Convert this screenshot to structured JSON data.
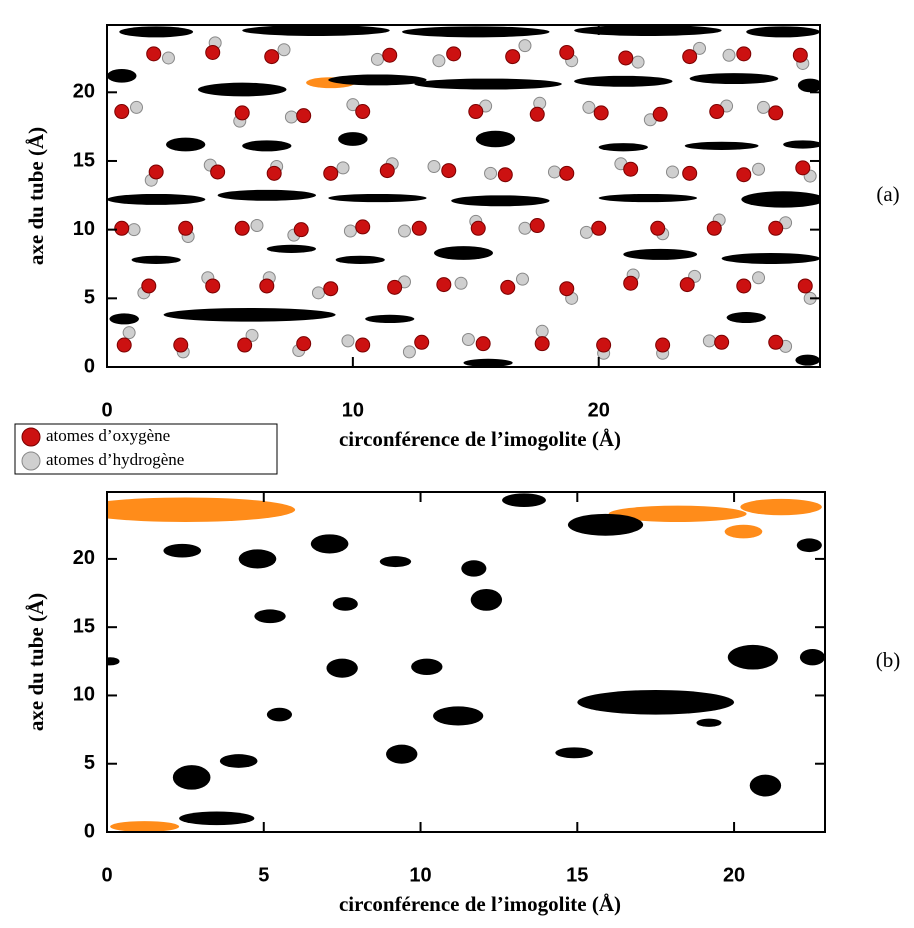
{
  "chart_data": [
    {
      "type": "scatter",
      "panel_label": "(a)",
      "xlabel": "circonférence de l’imogolite (Å)",
      "ylabel": "axe du tube (Å)",
      "xlim": [
        0,
        29
      ],
      "ylim": [
        0,
        24.9
      ],
      "xticks": [
        0,
        10,
        20
      ],
      "yticks": [
        0,
        5,
        10,
        15,
        20
      ],
      "series": [
        {
          "name": "atomes d’oxygène",
          "color": "#cc1111",
          "x": [
            1.9,
            4.3,
            6.7,
            11.5,
            14.1,
            16.5,
            18.7,
            21.1,
            23.7,
            25.9,
            28.2,
            0.6,
            5.5,
            8.0,
            10.4,
            15.0,
            17.5,
            20.1,
            22.5,
            24.8,
            27.2,
            2.0,
            4.5,
            6.8,
            9.1,
            11.4,
            13.9,
            16.2,
            18.7,
            21.3,
            23.7,
            25.9,
            28.3,
            0.6,
            3.2,
            5.5,
            7.9,
            10.4,
            12.7,
            15.1,
            17.5,
            20.0,
            22.4,
            24.7,
            27.2,
            1.7,
            4.3,
            6.5,
            9.1,
            11.7,
            13.7,
            16.3,
            18.7,
            21.3,
            23.6,
            25.9,
            28.4,
            0.7,
            3.0,
            5.6,
            8.0,
            10.4,
            12.8,
            15.3,
            17.7,
            20.2,
            22.6,
            25.0,
            27.2
          ],
          "y": [
            22.8,
            22.9,
            22.6,
            22.7,
            22.8,
            22.6,
            22.9,
            22.5,
            22.6,
            22.8,
            22.7,
            18.6,
            18.5,
            18.3,
            18.6,
            18.6,
            18.4,
            18.5,
            18.4,
            18.6,
            18.5,
            14.2,
            14.2,
            14.1,
            14.1,
            14.3,
            14.3,
            14.0,
            14.1,
            14.4,
            14.1,
            14.0,
            14.5,
            10.1,
            10.1,
            10.1,
            10.0,
            10.2,
            10.1,
            10.1,
            10.3,
            10.1,
            10.1,
            10.1,
            10.1,
            5.9,
            5.9,
            5.9,
            5.7,
            5.8,
            6.0,
            5.8,
            5.7,
            6.1,
            6.0,
            5.9,
            5.9,
            1.6,
            1.6,
            1.6,
            1.7,
            1.6,
            1.8,
            1.7,
            1.7,
            1.6,
            1.6,
            1.8,
            1.8
          ]
        },
        {
          "name": "atomes d’hydrogène",
          "color": "#cfcfcf",
          "x": [
            2.5,
            4.4,
            7.2,
            11.0,
            13.5,
            17.0,
            18.9,
            21.6,
            24.1,
            25.3,
            28.3,
            1.2,
            5.4,
            7.5,
            10.0,
            15.4,
            17.6,
            19.6,
            22.1,
            25.2,
            26.7,
            1.8,
            4.2,
            6.9,
            9.6,
            11.6,
            13.3,
            15.6,
            18.2,
            20.9,
            23.0,
            26.5,
            28.6,
            1.1,
            3.3,
            6.1,
            7.6,
            9.9,
            12.1,
            15.0,
            17.0,
            19.5,
            22.6,
            24.9,
            27.6,
            1.5,
            4.1,
            6.6,
            8.6,
            12.1,
            14.4,
            16.9,
            18.9,
            21.4,
            23.9,
            26.5,
            28.6,
            0.9,
            3.1,
            5.9,
            7.8,
            9.8,
            12.3,
            14.7,
            17.7,
            20.2,
            22.6,
            24.5,
            27.6
          ],
          "y": [
            22.5,
            23.6,
            23.1,
            22.4,
            22.3,
            23.4,
            22.3,
            22.2,
            23.2,
            22.7,
            22.1,
            18.9,
            17.9,
            18.2,
            19.1,
            19.0,
            19.2,
            18.9,
            18.0,
            19.0,
            18.9,
            13.6,
            14.7,
            14.6,
            14.5,
            14.8,
            14.6,
            14.1,
            14.2,
            14.8,
            14.2,
            14.4,
            13.9,
            10.0,
            9.5,
            10.3,
            9.6,
            9.9,
            9.9,
            10.6,
            10.1,
            9.8,
            9.7,
            10.7,
            10.5,
            5.4,
            6.5,
            6.5,
            5.4,
            6.2,
            6.1,
            6.4,
            5.0,
            6.7,
            6.6,
            6.5,
            5.0,
            2.5,
            1.1,
            2.3,
            1.2,
            1.9,
            1.1,
            2.0,
            2.6,
            1.0,
            1.0,
            1.9,
            1.5
          ]
        },
        {
          "color": "#000000",
          "x": [
            2,
            8.5,
            15,
            22,
            27.5,
            0.6,
            5.5,
            11,
            15.5,
            21,
            25.5,
            28.6,
            3.2,
            6.5,
            10,
            15.8,
            21,
            25,
            28.3,
            2,
            6.5,
            11,
            16,
            22,
            27.5,
            2,
            7.5,
            10.3,
            14.5,
            22.5,
            27,
            0.7,
            5.8,
            11.5,
            26,
            15.5,
            28.5
          ],
          "y": [
            24.4,
            24.5,
            24.4,
            24.5,
            24.4,
            21.2,
            20.2,
            20.9,
            20.6,
            20.8,
            21,
            20.5,
            16.2,
            16.1,
            16.6,
            16.6,
            16,
            16.1,
            16.2,
            12.2,
            12.5,
            12.3,
            12.1,
            12.3,
            12.2,
            7.8,
            8.6,
            7.8,
            8.3,
            8.2,
            7.9,
            3.5,
            3.8,
            3.5,
            3.6,
            0.3,
            0.5
          ],
          "rx": [
            1.5,
            3,
            3,
            3,
            1.5,
            0.6,
            1.8,
            2,
            3,
            2,
            1.8,
            0.5,
            0.8,
            1,
            0.6,
            0.8,
            1,
            1.5,
            0.8,
            2,
            2,
            2,
            2,
            2,
            1.7,
            1,
            1,
            1,
            1.2,
            1.5,
            2,
            0.6,
            3.5,
            1,
            0.8,
            1,
            0.5
          ],
          "ry": [
            0.4,
            0.4,
            0.4,
            0.4,
            0.4,
            0.5,
            0.5,
            0.4,
            0.4,
            0.4,
            0.4,
            0.5,
            0.5,
            0.4,
            0.5,
            0.6,
            0.3,
            0.3,
            0.3,
            0.4,
            0.4,
            0.3,
            0.4,
            0.3,
            0.6,
            0.3,
            0.3,
            0.3,
            0.5,
            0.4,
            0.4,
            0.4,
            0.5,
            0.3,
            0.4,
            0.3,
            0.4
          ]
        },
        {
          "color": "#ff8c1a",
          "x": [
            9.1
          ],
          "y": [
            20.7
          ],
          "rx": [
            1
          ],
          "ry": [
            0.4
          ]
        }
      ]
    },
    {
      "type": "scatter",
      "panel_label": "(b)",
      "xlabel": "circonférence de l’imogolite (Å)",
      "ylabel": "axe du tube (Å)",
      "xlim": [
        0,
        22.9
      ],
      "ylim": [
        0,
        24.9
      ],
      "xticks": [
        0,
        5,
        10,
        15,
        20
      ],
      "yticks": [
        0,
        5,
        10,
        15,
        20
      ],
      "series": [
        {
          "color": "#000000",
          "x": [
            2.4,
            4.8,
            7.1,
            9.2,
            11.7,
            12.1,
            7.6,
            5.2,
            7.5,
            10.2,
            20.6,
            22.5,
            17.5,
            11.2,
            5.5,
            9.4,
            4.2,
            2.7,
            14.9,
            21.0,
            19.2,
            15.9,
            13.3,
            22.4,
            0.1,
            3.5
          ],
          "y": [
            20.6,
            20.0,
            21.1,
            19.8,
            19.3,
            17.0,
            16.7,
            15.8,
            12.0,
            12.1,
            12.8,
            12.8,
            9.5,
            8.5,
            8.6,
            5.7,
            5.2,
            4.0,
            5.8,
            3.4,
            8.0,
            22.5,
            24.3,
            21.0,
            12.5,
            1.0
          ],
          "rx": [
            0.6,
            0.6,
            0.6,
            0.5,
            0.4,
            0.5,
            0.4,
            0.5,
            0.5,
            0.5,
            0.8,
            0.4,
            2.5,
            0.8,
            0.4,
            0.5,
            0.6,
            0.6,
            0.6,
            0.5,
            0.4,
            1.2,
            0.7,
            0.4,
            0.3,
            1.2
          ],
          "ry": [
            0.5,
            0.7,
            0.7,
            0.4,
            0.6,
            0.8,
            0.5,
            0.5,
            0.7,
            0.6,
            0.9,
            0.6,
            0.9,
            0.7,
            0.5,
            0.7,
            0.5,
            0.9,
            0.4,
            0.8,
            0.3,
            0.8,
            0.5,
            0.5,
            0.3,
            0.5
          ]
        },
        {
          "color": "#ff8c1a",
          "x": [
            2.5,
            1.2,
            18.2,
            21.5,
            20.3
          ],
          "y": [
            23.6,
            0.4,
            23.3,
            23.8,
            22.0
          ],
          "rx": [
            3.5,
            1.1,
            2.2,
            1.3,
            0.6
          ],
          "ry": [
            0.9,
            0.4,
            0.6,
            0.6,
            0.5
          ]
        }
      ]
    }
  ]
}
